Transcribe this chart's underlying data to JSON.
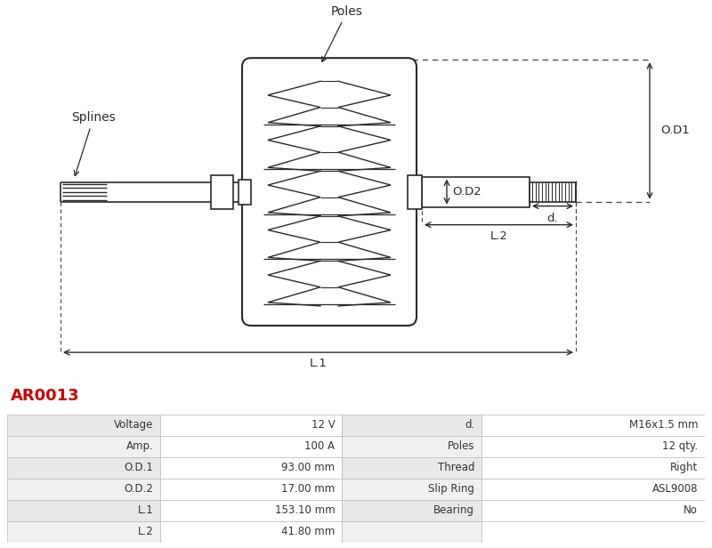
{
  "title_code": "AR0013",
  "title_color": "#cc0000",
  "bg_color": "#ffffff",
  "table_data": {
    "col1_labels": [
      "Voltage",
      "Amp.",
      "O.D.1",
      "O.D.2",
      "L.1",
      "L.2"
    ],
    "col1_values": [
      "12 V",
      "100 A",
      "93.00 mm",
      "17.00 mm",
      "153.10 mm",
      "41.80 mm"
    ],
    "col2_labels": [
      "d.",
      "Poles",
      "Thread",
      "Slip Ring",
      "Bearing",
      ""
    ],
    "col2_values": [
      "M16x1.5 mm",
      "12 qty.",
      "Right",
      "ASL9008",
      "No",
      ""
    ]
  },
  "labels": {
    "poles": "Poles",
    "splines": "Splines",
    "od1": "O.D1",
    "od2": "O.D2",
    "d": "d.",
    "l1": "L.1",
    "l2": "L.2"
  },
  "line_color": "#2a2a2a",
  "dashed_color": "#444444"
}
